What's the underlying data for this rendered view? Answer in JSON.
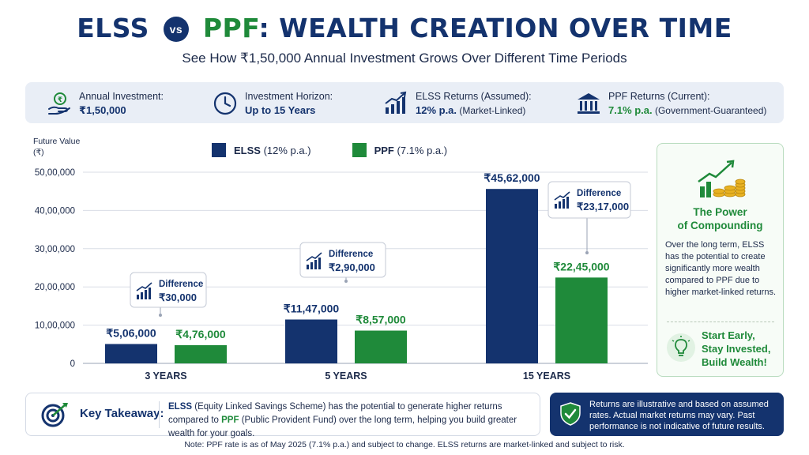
{
  "header": {
    "title_elss": "ELSS",
    "title_vs": "vs",
    "title_ppf": "PPF",
    "title_rest": ": WEALTH CREATION OVER TIME",
    "subtitle": "See How ₹1,50,000 Annual Investment Grows Over Different Time Periods"
  },
  "info": [
    {
      "label": "Annual Investment:",
      "value": "₹1,50,000",
      "note": "",
      "icon": "money-hand-icon"
    },
    {
      "label": "Investment Horizon:",
      "value": "Up to 15 Years",
      "note": "",
      "icon": "clock-icon"
    },
    {
      "label": "ELSS Returns (Assumed):",
      "value": "12% p.a.",
      "note": " (Market-Linked)",
      "icon": "growth-chart-icon"
    },
    {
      "label": "PPF Returns (Current):",
      "value": "7.1% p.a.",
      "note": " (Government-Guaranteed)",
      "icon": "bank-icon"
    }
  ],
  "chart_data": {
    "type": "bar",
    "ylabel": "Future Value (₹)",
    "ylabel_line1": "Future Value",
    "ylabel_line2": "(₹)",
    "ylim": [
      0,
      5000000
    ],
    "yticks": [
      0,
      1000000,
      2000000,
      3000000,
      4000000,
      5000000
    ],
    "ytick_labels": [
      "0",
      "10,00,000",
      "20,00,000",
      "30,00,000",
      "40,00,000",
      "50,00,000"
    ],
    "categories": [
      "3 YEARS",
      "5 YEARS",
      "15 YEARS"
    ],
    "series": [
      {
        "name": "ELSS",
        "legend": "(12% p.a.)",
        "color": "#14336e",
        "values": [
          506000,
          1147000,
          4562000
        ],
        "labels": [
          "₹5,06,000",
          "₹11,47,000",
          "₹45,62,000"
        ]
      },
      {
        "name": "PPF",
        "legend": "(7.1% p.a.)",
        "color": "#1f8a3a",
        "values": [
          476000,
          857000,
          2245000
        ],
        "labels": [
          "₹4,76,000",
          "₹8,57,000",
          "₹22,45,000"
        ]
      }
    ],
    "difference_label": "Difference",
    "differences": [
      "₹30,000",
      "₹2,90,000",
      "₹23,17,000"
    ],
    "grid": true,
    "legend_position": "top"
  },
  "side": {
    "title_line1": "The Power",
    "title_line2": "of Compounding",
    "text": "Over the long term, ELSS has the potential to create significantly more wealth compared to PPF due to higher market-linked returns.",
    "cta_line1": "Start Early,",
    "cta_line2": "Stay Invested,",
    "cta_line3": "Build Wealth!"
  },
  "takeaway": {
    "label": "Key Takeaway:",
    "elss_term": "ELSS",
    "text_1": " (Equity Linked Savings Scheme) has the potential to generate higher returns compared to ",
    "ppf_term": "PPF",
    "text_2": " (Public Provident Fund) over the long term, helping you build greater wealth for your goals."
  },
  "disclaimer": "Returns are illustrative and based on assumed rates. Actual market returns may vary. Past performance is not indicative of future results.",
  "footnote": "Note: PPF rate is as of May 2025 (7.1% p.a.) and subject to change. ELSS returns are market-linked and subject to risk.",
  "colors": {
    "navy": "#14336e",
    "green": "#1f8a3a",
    "panel": "#e9eef6"
  }
}
